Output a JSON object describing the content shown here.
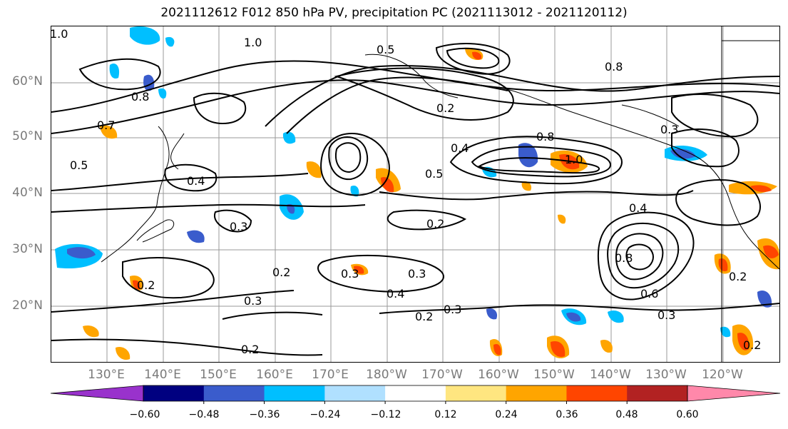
{
  "title": "2021112612 F012 850 hPa PV, precipitation PC (2021113012 - 2021120112)",
  "lat_labels": [
    "60°N",
    "50°N",
    "40°N",
    "30°N",
    "20°N"
  ],
  "lon_labels": [
    "130°E",
    "140°E",
    "150°E",
    "160°E",
    "170°E",
    "180°W",
    "170°W",
    "160°W",
    "150°W",
    "140°W",
    "130°W",
    "120°W"
  ],
  "contour_labels": [
    "1.0",
    "0.5",
    "1.0",
    "0.4",
    "0.8",
    "0.7",
    "0.5",
    "0.4",
    "0.2",
    "0.3",
    "0.2",
    "0.3",
    "0.2",
    "0.3",
    "0.4",
    "0.2",
    "0.3",
    "0.3",
    "0.2",
    "0.2",
    "0.3",
    "0.4",
    "0.6",
    "0.8",
    "1.0",
    "0.5",
    "0.8",
    "0.3",
    "0.2",
    "0.2",
    "0.8"
  ],
  "colorbar": {
    "colors": [
      "#9932cc",
      "#000080",
      "#3a5ccc",
      "#00bfff",
      "#b0e0ff",
      "#ffffff",
      "#ffe680",
      "#ffa500",
      "#ff4500",
      "#b22222",
      "#ff88aa"
    ],
    "tick_labels": [
      "−0.60",
      "−0.48",
      "−0.36",
      "−0.24",
      "−0.12",
      "0.12",
      "0.24",
      "0.36",
      "0.48",
      "0.60"
    ]
  }
}
